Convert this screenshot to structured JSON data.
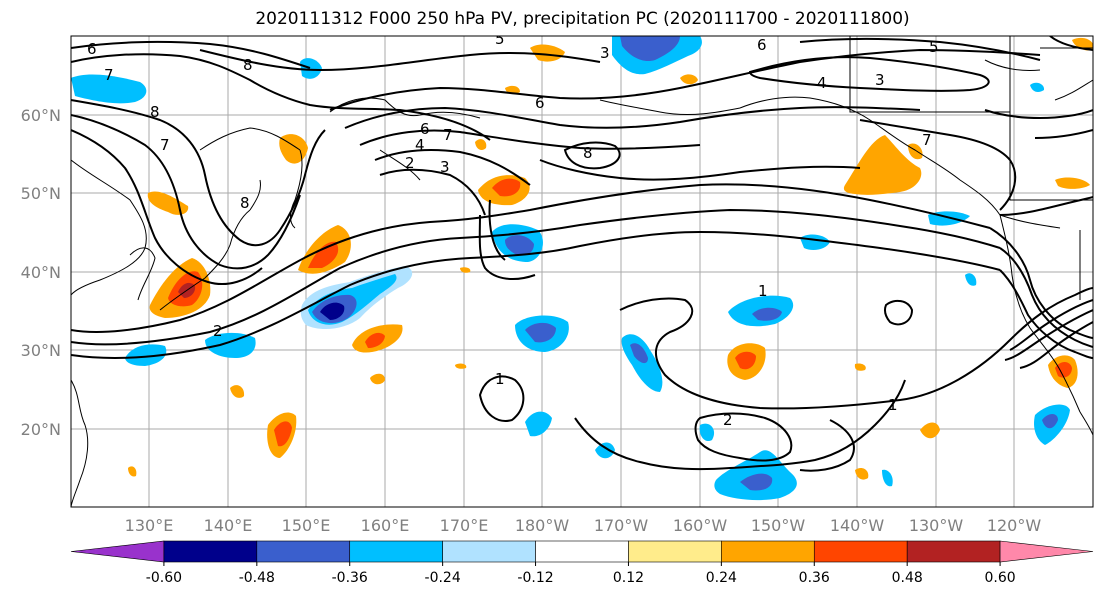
{
  "title": "2020111312 F000 250 hPa PV, precipitation PC (2020111700 - 2020111800)",
  "lat_labels": [
    "60°N",
    "50°N",
    "40°N",
    "30°N",
    "20°N"
  ],
  "lon_labels": [
    "130°E",
    "140°E",
    "150°E",
    "160°E",
    "170°E",
    "180°W",
    "170°W",
    "160°W",
    "150°W",
    "140°W",
    "130°W",
    "120°W"
  ],
  "contour_labels": [
    "1",
    "1",
    "1",
    "2",
    "2",
    "2",
    "3",
    "3",
    "4",
    "5",
    "6",
    "6",
    "6",
    "7",
    "7",
    "7",
    "8",
    "8",
    "8",
    "8",
    "3",
    "4",
    "5",
    "6",
    "7"
  ],
  "colorbar": {
    "colors": [
      "#9932cc",
      "#00008b",
      "#3a5fcd",
      "#00bfff",
      "#b0e2ff",
      "#ffffff",
      "#ffec8b",
      "#ffa500",
      "#ff4500",
      "#b22222",
      "#ff88aa"
    ],
    "tick_labels": [
      "-0.60",
      "-0.48",
      "-0.36",
      "-0.24",
      "-0.12",
      "0.12",
      "0.24",
      "0.36",
      "0.48",
      "0.60"
    ]
  }
}
